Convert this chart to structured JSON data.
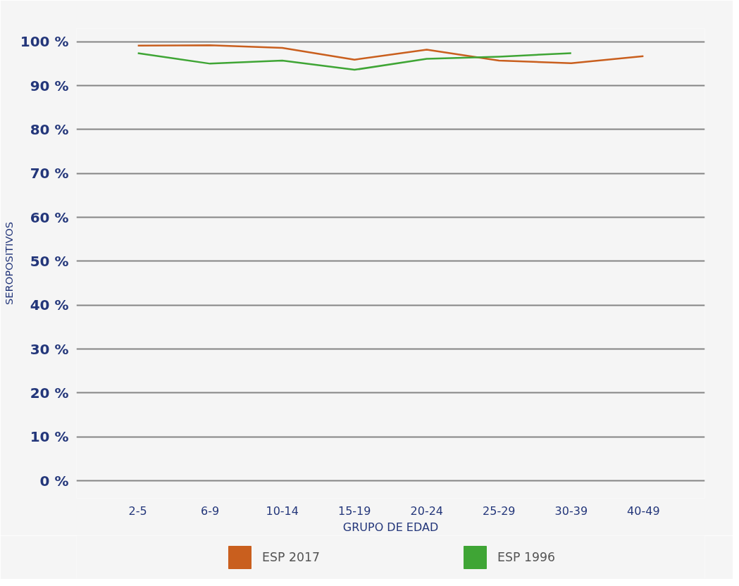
{
  "chart_data": {
    "type": "line",
    "xlabel": "GRUPO DE EDAD",
    "ylabel": "SEROPOSITIVOS",
    "categories": [
      "2-5",
      "6-9",
      "10-14",
      "15-19",
      "20-24",
      "25-29",
      "30-39",
      "40-49"
    ],
    "series": [
      {
        "name": "ESP 2017",
        "color": "#c95f1e",
        "values": [
          99.1,
          99.2,
          98.6,
          95.9,
          98.2,
          95.7,
          95.1,
          96.7
        ]
      },
      {
        "name": "ESP 1996",
        "color": "#3fa535",
        "values": [
          97.4,
          95.0,
          95.7,
          93.6,
          96.1,
          96.6,
          97.4,
          null
        ]
      }
    ],
    "ylim": [
      -4,
      103
    ],
    "yticks": [
      {
        "value": 0,
        "label": "0 %"
      },
      {
        "value": 10,
        "label": "10 %"
      },
      {
        "value": 20,
        "label": "20 %"
      },
      {
        "value": 30,
        "label": "30 %"
      },
      {
        "value": 40,
        "label": "40 %"
      },
      {
        "value": 50,
        "label": "50 %"
      },
      {
        "value": 60,
        "label": "60 %"
      },
      {
        "value": 70,
        "label": "70 %"
      },
      {
        "value": 80,
        "label": "80 %"
      },
      {
        "value": 90,
        "label": "90 %"
      },
      {
        "value": 100,
        "label": "100 %"
      }
    ],
    "grid": "y",
    "legend": "bottom",
    "marker": "none",
    "line_style": "solid"
  }
}
